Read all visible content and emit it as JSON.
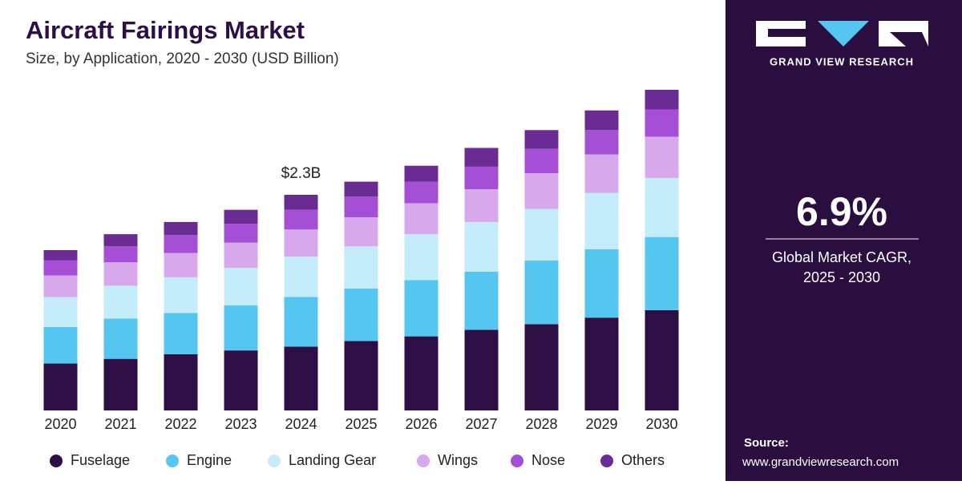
{
  "chart_data": {
    "type": "stacked_bar",
    "title": "Aircraft Fairings Market",
    "subtitle": "Size, by Application, 2020 - 2030 (USD Billion)",
    "categories": [
      "2020",
      "2021",
      "2022",
      "2023",
      "2024",
      "2025",
      "2026",
      "2027",
      "2028",
      "2029",
      "2030"
    ],
    "series": [
      {
        "name": "Fuselage",
        "color": "#2d0e45",
        "values": [
          0.5,
          0.55,
          0.6,
          0.64,
          0.68,
          0.74,
          0.79,
          0.86,
          0.92,
          0.99,
          1.07
        ]
      },
      {
        "name": "Engine",
        "color": "#55c6f0",
        "values": [
          0.39,
          0.43,
          0.44,
          0.48,
          0.53,
          0.56,
          0.6,
          0.62,
          0.68,
          0.73,
          0.78
        ]
      },
      {
        "name": "Landing Gear",
        "color": "#c4ecfb",
        "values": [
          0.32,
          0.35,
          0.38,
          0.4,
          0.43,
          0.45,
          0.49,
          0.53,
          0.55,
          0.6,
          0.63
        ]
      },
      {
        "name": "Wings",
        "color": "#d7a9ec",
        "values": [
          0.23,
          0.25,
          0.26,
          0.27,
          0.29,
          0.31,
          0.33,
          0.35,
          0.38,
          0.41,
          0.44
        ]
      },
      {
        "name": "Nose",
        "color": "#a54fd6",
        "values": [
          0.16,
          0.17,
          0.19,
          0.2,
          0.21,
          0.22,
          0.23,
          0.24,
          0.26,
          0.26,
          0.29
        ]
      },
      {
        "name": "Others",
        "color": "#6a2c92",
        "values": [
          0.11,
          0.13,
          0.14,
          0.15,
          0.16,
          0.16,
          0.17,
          0.2,
          0.2,
          0.21,
          0.21
        ]
      }
    ],
    "annotations": [
      {
        "label": "$2.3B",
        "value": 2.3,
        "category": "2024"
      }
    ]
  },
  "sidebar": {
    "brand": "GRAND VIEW RESEARCH",
    "cagr": "6.9%",
    "cagr_caption_1": "Global Market CAGR,",
    "cagr_caption_2": "2025 - 2030",
    "source_label": "Source:",
    "source_url": "www.grandviewresearch.com"
  }
}
